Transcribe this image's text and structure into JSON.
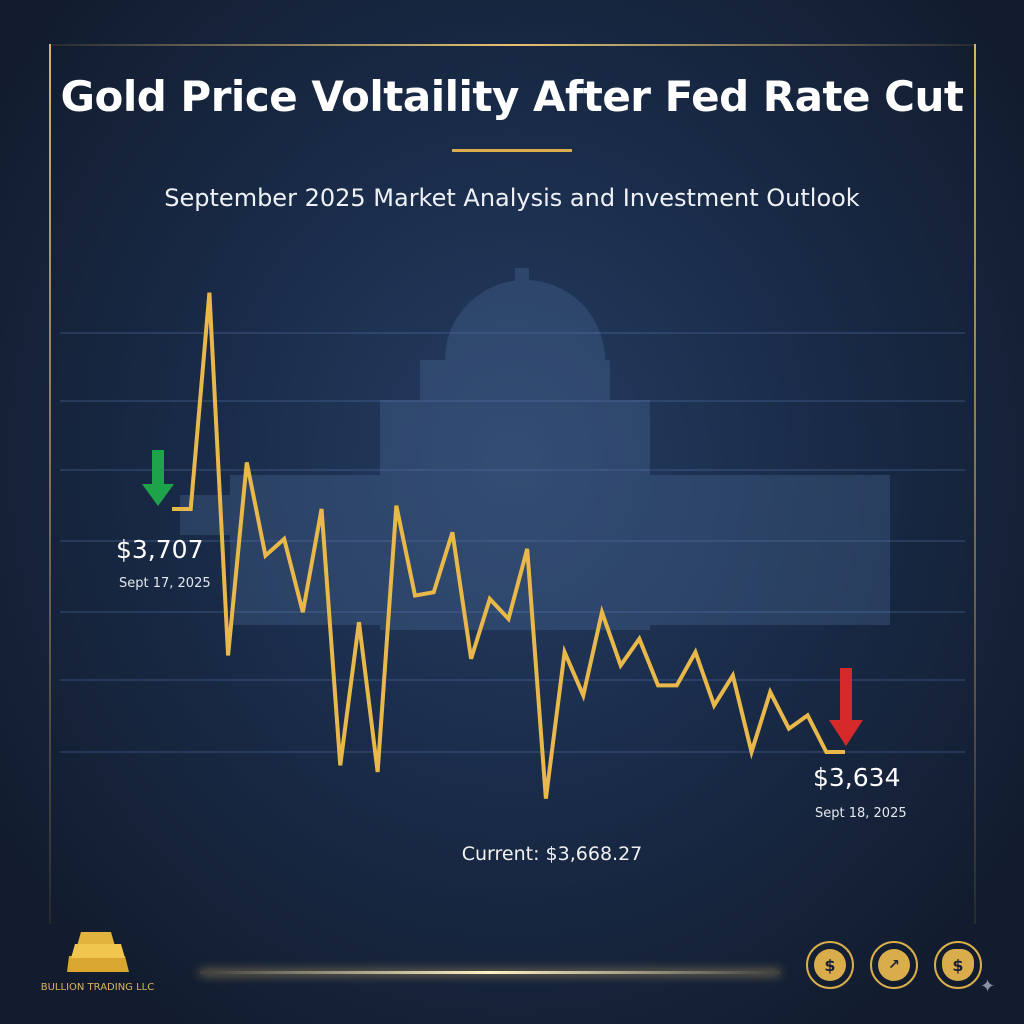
{
  "header": {
    "title": "Gold Price Voltaility After Fed Rate Cut",
    "subtitle": "September 2025 Market Analysis and Investment Outlook"
  },
  "chart_data": {
    "type": "line",
    "title": "Gold Price Voltaility After Fed Rate Cut",
    "subtitle": "September 2025 Market Analysis and Investment Outlook",
    "xlabel": "",
    "ylabel": "",
    "grid": true,
    "series": [
      {
        "color": "#e8b84a",
        "values": [
          3707,
          3707,
          3772,
          3663,
          3721,
          3693,
          3698,
          3676,
          3707,
          3630,
          3673,
          3628,
          3708,
          3681,
          3682,
          3700,
          3662,
          3680,
          3674,
          3695,
          3620,
          3664,
          3651,
          3676,
          3660,
          3668,
          3654,
          3654,
          3664,
          3648,
          3657,
          3634,
          3652,
          3641,
          3645,
          3634,
          3634
        ]
      }
    ],
    "annotations": {
      "start": {
        "value": "$3,707",
        "date": "Sept 17, 2025",
        "arrow_color": "#1fa34a",
        "arrow": "down"
      },
      "end": {
        "value": "$3,634",
        "date": "Sept 18, 2025",
        "arrow_color": "#d62a2a",
        "arrow": "down"
      },
      "current": "Current: $3,668.27"
    }
  },
  "footer": {
    "brand": "BULLION TRADING LLC",
    "icons": [
      "dollar-coin-icon",
      "bar-chart-growth-icon",
      "shield-dollar-icon"
    ]
  },
  "colors": {
    "background": "#1a2c4a",
    "accent": "#d9ad4c"
  }
}
